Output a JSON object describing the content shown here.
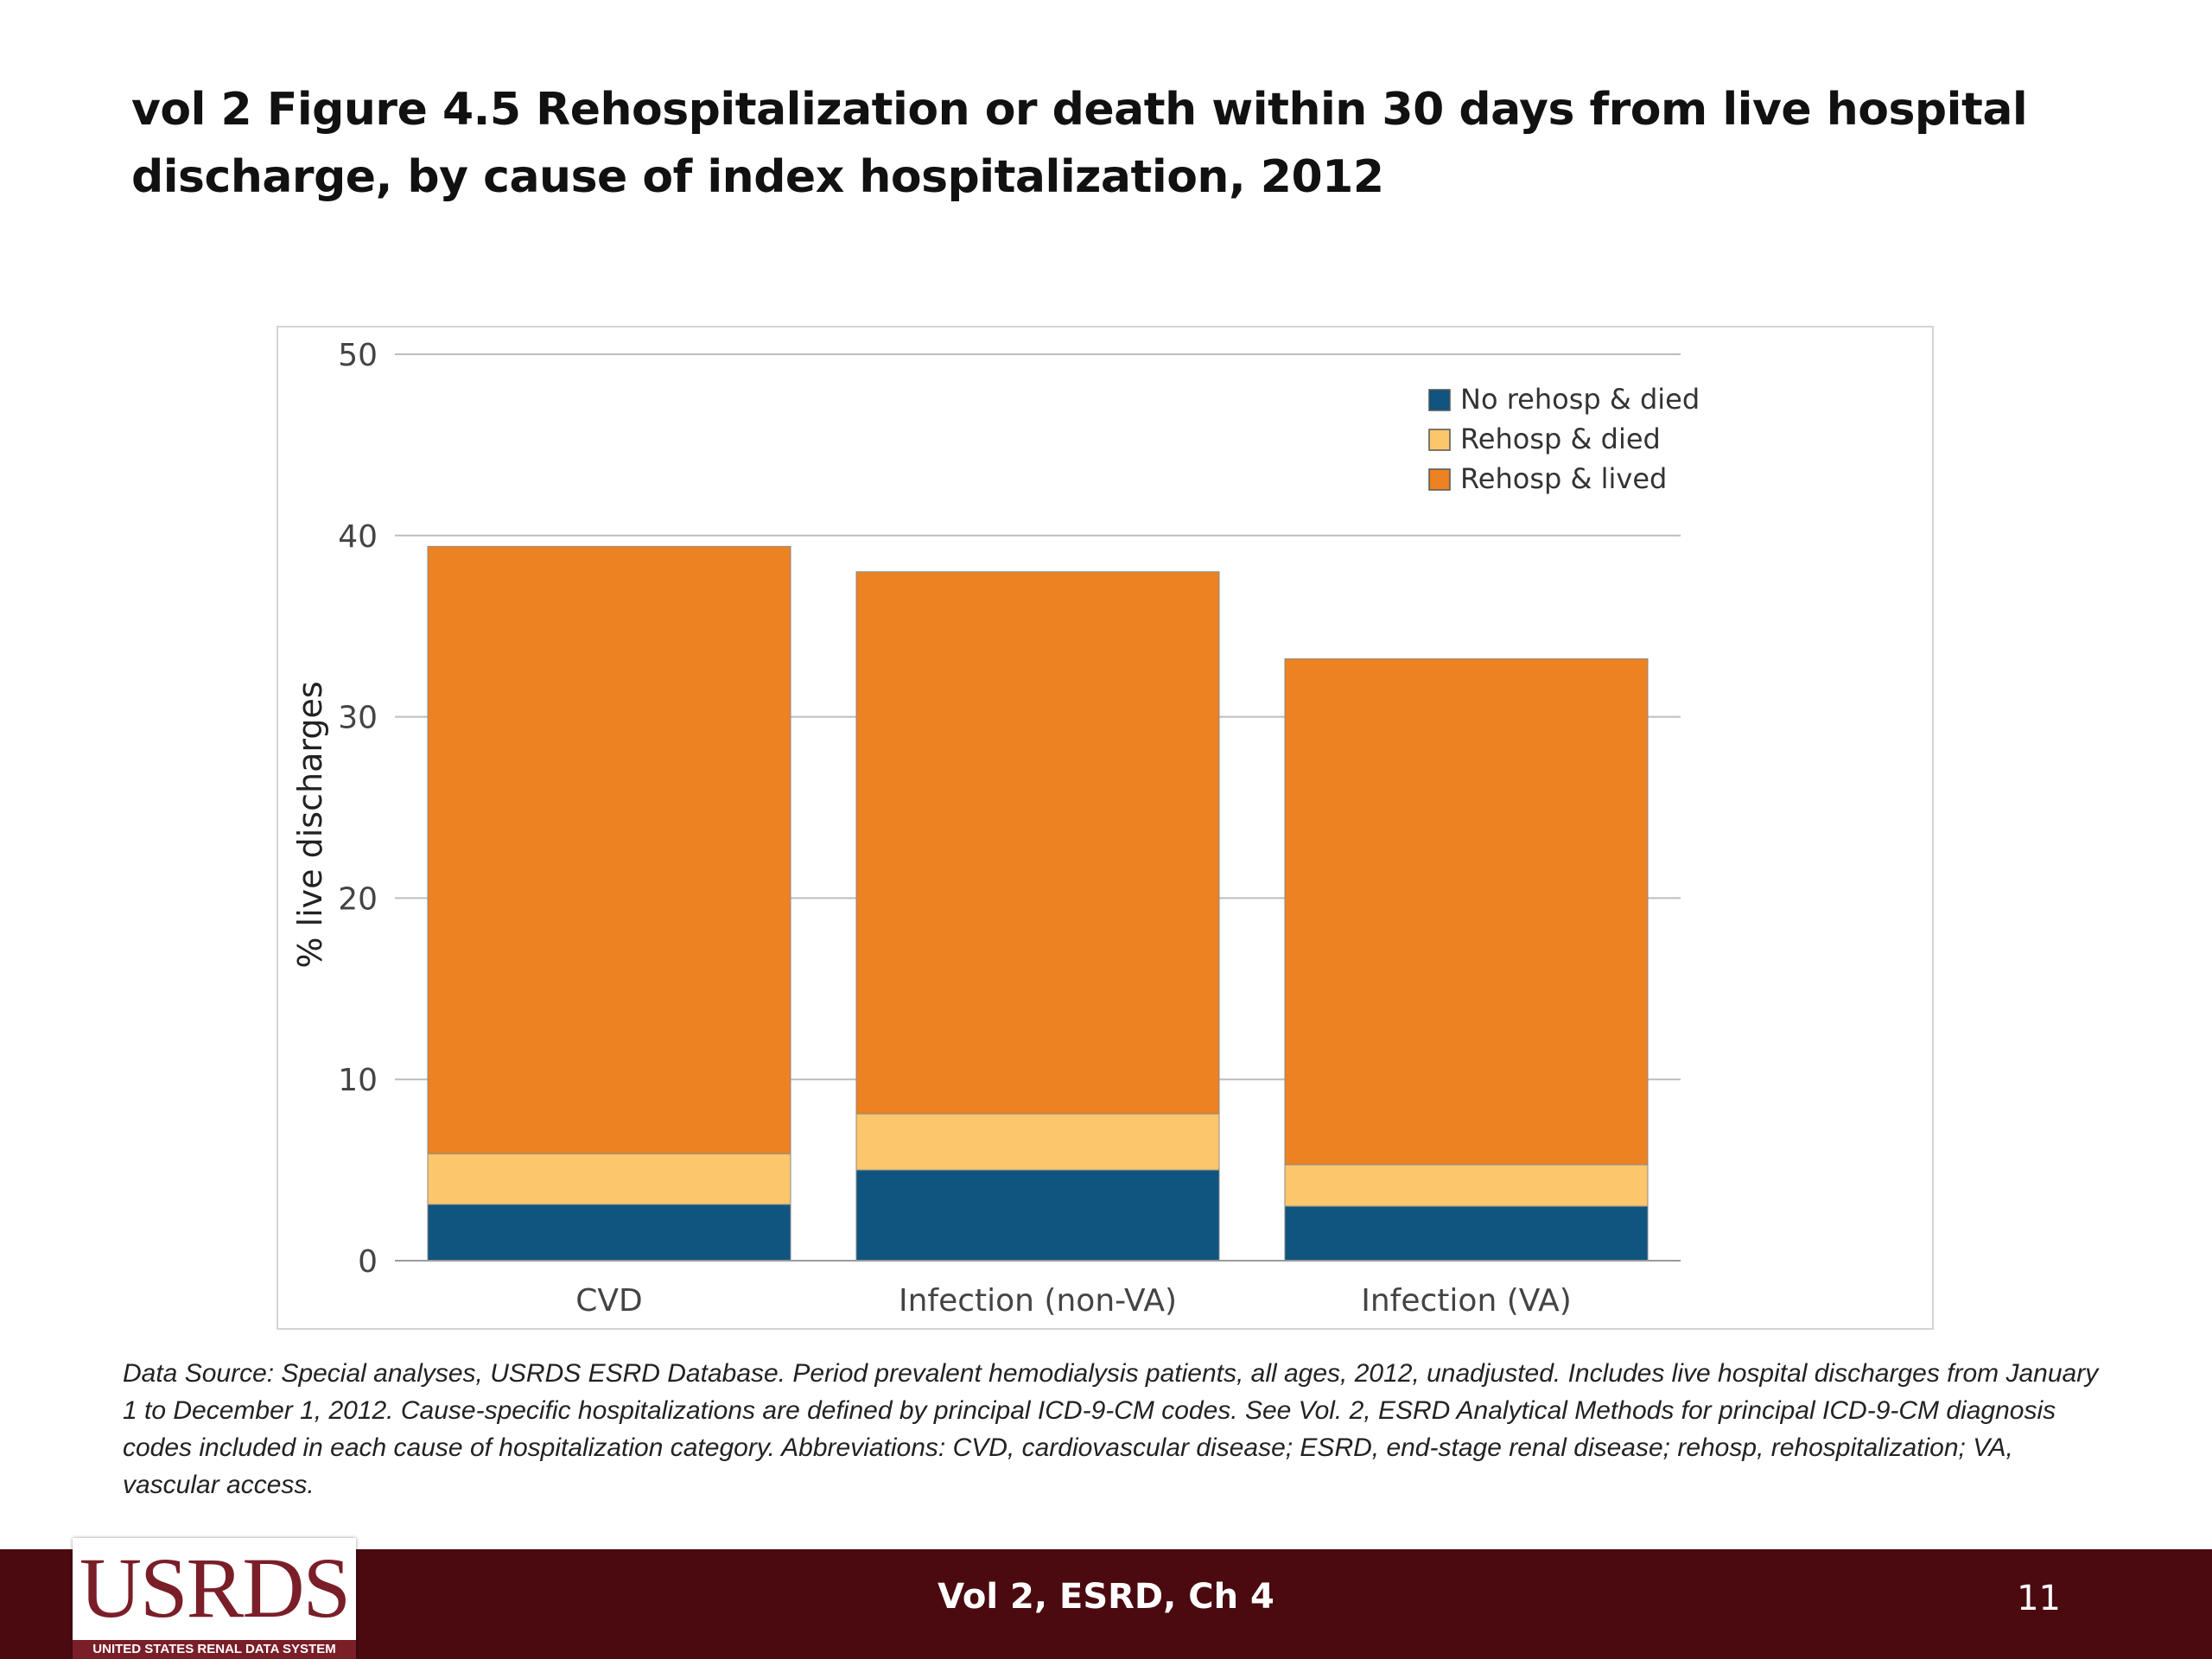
{
  "title": "vol 2 Figure 4.5 Rehospitalization or death within 30 days from live hospital discharge, by cause of index hospitalization, 2012",
  "source_note": "Data Source: Special analyses, USRDS ESRD Database. Period prevalent hemodialysis patients, all ages, 2012, unadjusted. Includes live hospital discharges from January 1 to December 1, 2012. Cause-specific hospitalizations are defined by principal ICD-9-CM codes. See Vol. 2, ESRD Analytical Methods for principal ICD-9-CM diagnosis codes included in each cause of hospitalization category. Abbreviations: CVD, cardiovascular disease; ESRD, end-stage renal disease; rehosp, rehospitalization; VA, vascular access.",
  "footer": {
    "label": "Vol 2, ESRD, Ch 4",
    "page_number": "11",
    "logo_text": "USRDS",
    "logo_subtext": "UNITED STATES RENAL DATA SYSTEM"
  },
  "colors": {
    "no_rehosp_died": "#0f5580",
    "rehosp_died": "#fcc66c",
    "rehosp_lived": "#ec8222",
    "footer_bg": "#4a0a10",
    "logo": "#7a1e28"
  },
  "chart_data": {
    "type": "bar",
    "stacked": true,
    "categories": [
      "CVD",
      "Infection (non-VA)",
      "Infection (VA)"
    ],
    "series": [
      {
        "name": "No rehosp & died",
        "values": [
          3.1,
          5.0,
          3.0
        ],
        "color": "#0f5580"
      },
      {
        "name": "Rehosp & died",
        "values": [
          2.8,
          3.1,
          2.3
        ],
        "color": "#fcc66c"
      },
      {
        "name": "Rehosp & lived",
        "values": [
          33.5,
          29.9,
          27.9
        ],
        "color": "#ec8222"
      }
    ],
    "ylabel": "% live discharges",
    "xlabel": "",
    "ylim": [
      0,
      50
    ],
    "yticks": [
      0,
      10,
      20,
      30,
      40,
      50
    ],
    "grid": true,
    "legend_position": "top-right"
  }
}
